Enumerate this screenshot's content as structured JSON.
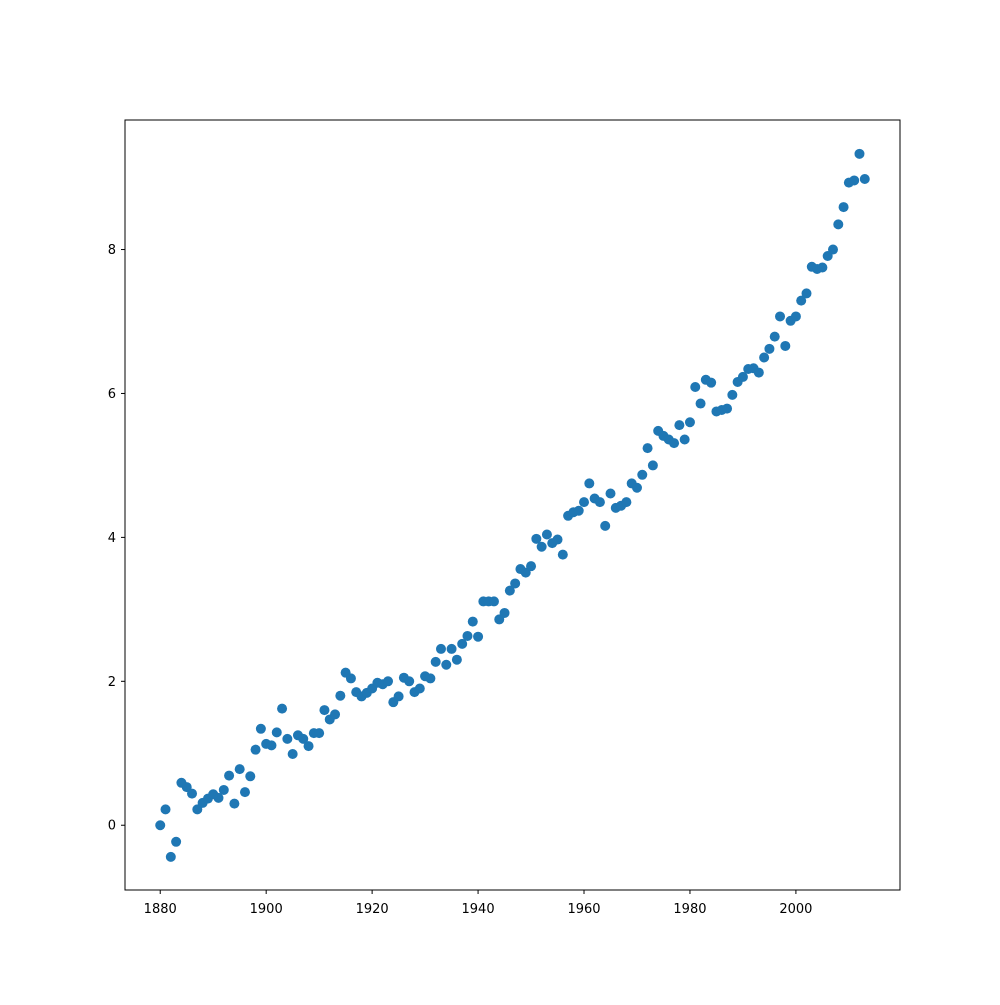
{
  "chart_data": {
    "type": "scatter",
    "title": "",
    "xlabel": "",
    "ylabel": "",
    "xlim": [
      1873.35,
      2019.65
    ],
    "ylim": [
      -0.9,
      9.8
    ],
    "xticks": [
      1880,
      1900,
      1920,
      1940,
      1960,
      1980,
      2000
    ],
    "yticks": [
      0,
      2,
      4,
      6,
      8
    ],
    "grid": false,
    "legend": "none",
    "marker_color": "#1f77b4",
    "series": [
      {
        "x": [
          1880,
          1881,
          1882,
          1883,
          1884,
          1885,
          1886,
          1887,
          1888,
          1889,
          1890,
          1891,
          1892,
          1893,
          1894,
          1895,
          1896,
          1897,
          1898,
          1899,
          1900,
          1901,
          1902,
          1903,
          1904,
          1905,
          1906,
          1907,
          1908,
          1909,
          1910,
          1911,
          1912,
          1913,
          1914,
          1915,
          1916,
          1917,
          1918,
          1919,
          1920,
          1921,
          1922,
          1923,
          1924,
          1925,
          1926,
          1927,
          1928,
          1929,
          1930,
          1931,
          1932,
          1933,
          1934,
          1935,
          1936,
          1937,
          1938,
          1939,
          1940,
          1941,
          1942,
          1943,
          1944,
          1945,
          1946,
          1947,
          1948,
          1949,
          1950,
          1951,
          1952,
          1953,
          1954,
          1955,
          1956,
          1957,
          1958,
          1959,
          1960,
          1961,
          1962,
          1963,
          1964,
          1965,
          1966,
          1967,
          1968,
          1969,
          1970,
          1971,
          1972,
          1973,
          1974,
          1975,
          1976,
          1977,
          1978,
          1979,
          1980,
          1981,
          1982,
          1983,
          1984,
          1985,
          1986,
          1987,
          1988,
          1989,
          1990,
          1991,
          1992,
          1993,
          1994,
          1995,
          1996,
          1997,
          1998,
          1999,
          2000,
          2001,
          2002,
          2003,
          2004,
          2005,
          2006,
          2007,
          2008,
          2009,
          2010,
          2011,
          2012,
          2013
        ],
        "y": [
          0.0,
          0.22,
          -0.44,
          -0.23,
          0.59,
          0.53,
          0.44,
          0.22,
          0.31,
          0.37,
          0.43,
          0.38,
          0.49,
          0.69,
          0.3,
          0.78,
          0.46,
          0.68,
          1.05,
          1.34,
          1.13,
          1.11,
          1.29,
          1.62,
          1.2,
          0.99,
          1.25,
          1.2,
          1.1,
          1.28,
          1.28,
          1.6,
          1.47,
          1.54,
          1.8,
          2.12,
          2.04,
          1.85,
          1.79,
          1.84,
          1.9,
          1.98,
          1.96,
          2.0,
          1.71,
          1.79,
          2.05,
          2.0,
          1.85,
          1.9,
          2.07,
          2.04,
          2.27,
          2.45,
          2.23,
          2.45,
          2.3,
          2.52,
          2.63,
          2.83,
          2.62,
          3.11,
          3.11,
          3.11,
          2.86,
          2.95,
          3.26,
          3.36,
          3.56,
          3.51,
          3.6,
          3.98,
          3.87,
          4.04,
          3.92,
          3.97,
          3.76,
          4.3,
          4.35,
          4.37,
          4.49,
          4.75,
          4.54,
          4.49,
          4.16,
          4.61,
          4.41,
          4.44,
          4.49,
          4.75,
          4.69,
          4.87,
          5.24,
          5.0,
          5.48,
          5.41,
          5.36,
          5.31,
          5.56,
          5.36,
          5.6,
          6.09,
          5.86,
          6.19,
          6.15,
          5.75,
          5.77,
          5.79,
          5.98,
          6.16,
          6.23,
          6.34,
          6.35,
          6.29,
          6.5,
          6.62,
          6.79,
          7.07,
          6.66,
          7.01,
          7.07,
          7.29,
          7.39,
          7.76,
          7.73,
          7.75,
          7.91,
          8.0,
          8.35,
          8.59,
          8.93,
          8.96,
          9.33,
          8.98
        ]
      }
    ]
  }
}
